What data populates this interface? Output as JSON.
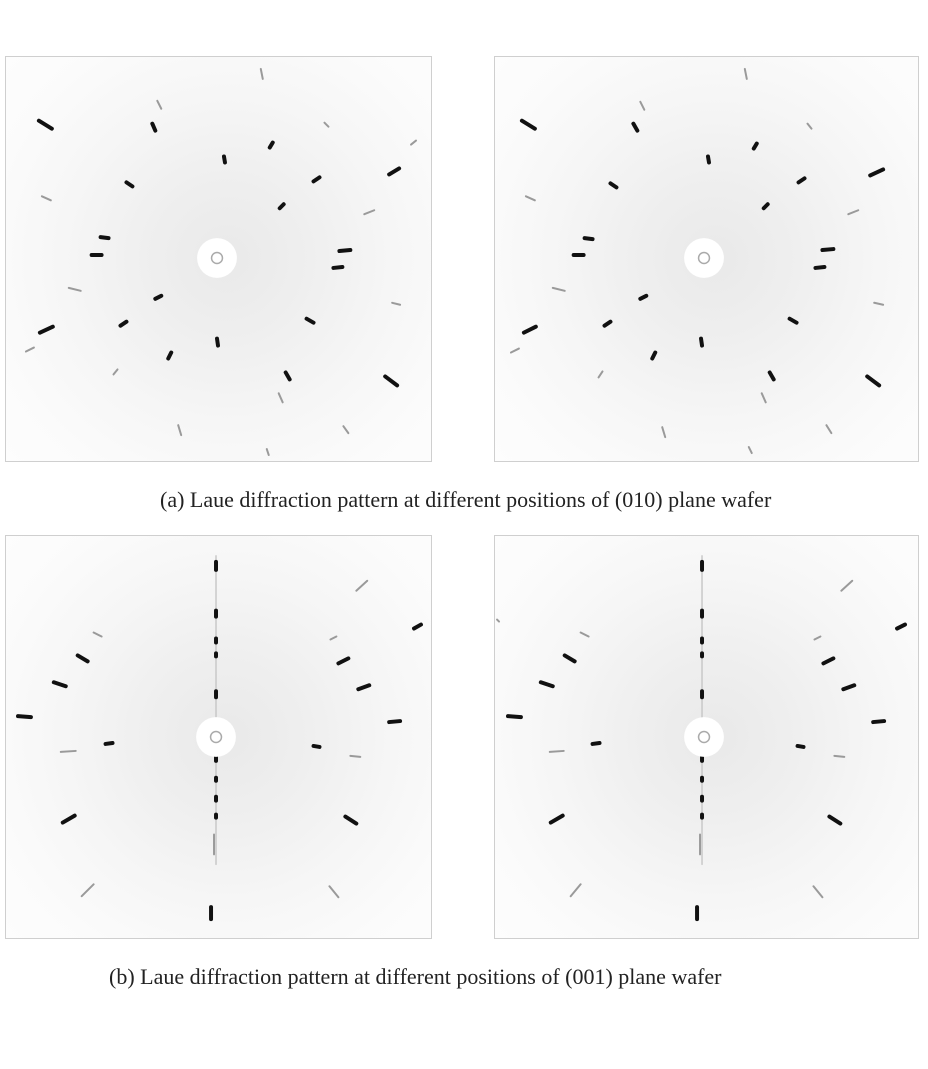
{
  "figure": {
    "caption_a": "(a) Laue diffraction pattern at different positions of (010) plane wafer",
    "caption_b": "(b) Laue diffraction pattern at different positions of (001) plane wafer",
    "panels": [
      {
        "id": "a1",
        "pattern": "010",
        "position": "left"
      },
      {
        "id": "a2",
        "pattern": "010",
        "position": "right"
      },
      {
        "id": "b1",
        "pattern": "001",
        "position": "left"
      },
      {
        "id": "b2",
        "pattern": "001",
        "position": "right"
      }
    ]
  },
  "colors": {
    "spot": "#111111",
    "faint_spot": "#9a9a9a",
    "beam_stop": "#ffffff",
    "frame": "#cfcfcf"
  }
}
